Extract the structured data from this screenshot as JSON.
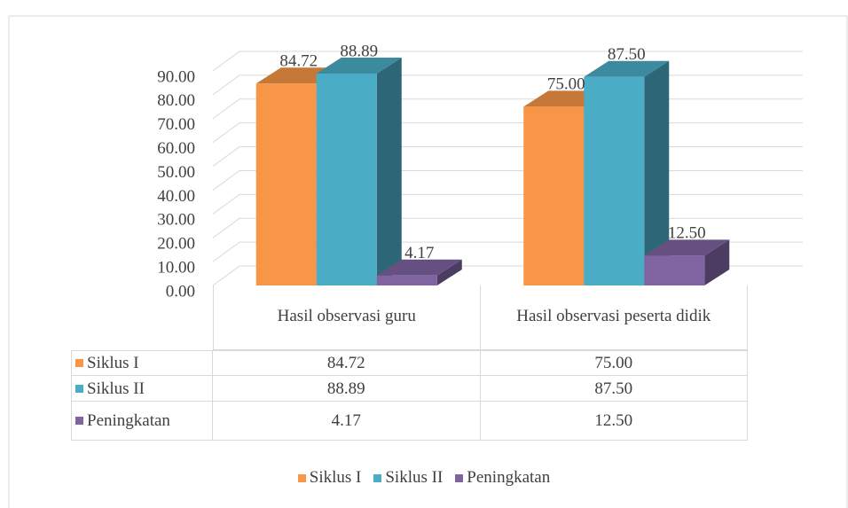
{
  "chart_data": {
    "type": "bar3d",
    "categories": [
      "Hasil observasi guru",
      "Hasil observasi peserta didik"
    ],
    "series": [
      {
        "name": "Siklus I",
        "color": "#f79646",
        "values": [
          84.72,
          75.0
        ],
        "value_labels": [
          "84.72",
          "75.00"
        ]
      },
      {
        "name": "Siklus II",
        "color": "#4bacc6",
        "values": [
          88.89,
          87.5
        ],
        "value_labels": [
          "88.89",
          "87.50"
        ]
      },
      {
        "name": "Peningkatan",
        "color": "#8064a2",
        "values": [
          4.17,
          12.5
        ],
        "value_labels": [
          "4.17",
          "12.50"
        ]
      }
    ],
    "ylim": [
      0,
      90
    ],
    "yticks": [
      {
        "value": 0,
        "label": "0.00"
      },
      {
        "value": 10,
        "label": "10.00"
      },
      {
        "value": 20,
        "label": "20.00"
      },
      {
        "value": 30,
        "label": "30.00"
      },
      {
        "value": 40,
        "label": "40.00"
      },
      {
        "value": 50,
        "label": "50.00"
      },
      {
        "value": 60,
        "label": "60.00"
      },
      {
        "value": 70,
        "label": "70.00"
      },
      {
        "value": 80,
        "label": "80.00"
      },
      {
        "value": 90,
        "label": "90.00"
      }
    ],
    "grid": true,
    "legend": "bottom",
    "data_table": true
  }
}
